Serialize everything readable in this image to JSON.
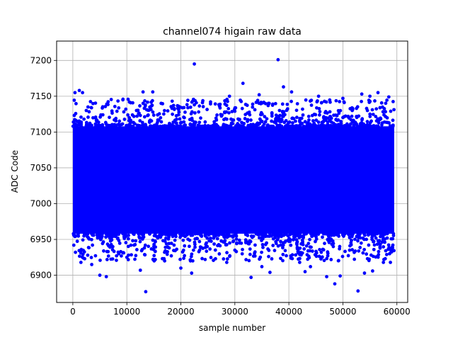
{
  "chart_data": {
    "type": "scatter",
    "title": "channel074 higain raw data",
    "xlabel": "sample number",
    "ylabel": "ADC Code",
    "xlim": [
      -3000,
      62000
    ],
    "ylim": [
      6862,
      7227
    ],
    "x_ticks": [
      0,
      10000,
      20000,
      30000,
      40000,
      50000,
      60000
    ],
    "y_ticks": [
      6900,
      6950,
      7000,
      7050,
      7100,
      7150,
      7200
    ],
    "grid": true,
    "marker_color": "#0000ff",
    "series": [
      {
        "x_range": [
          0,
          59500
        ],
        "dense_band": [
          6958,
          7108
        ],
        "outliers": [
          [
            22500,
            7195
          ],
          [
            38000,
            7201
          ],
          [
            31500,
            7168
          ],
          [
            39000,
            7163
          ],
          [
            40500,
            7156
          ],
          [
            13500,
            6877
          ],
          [
            52800,
            6878
          ],
          [
            48500,
            6888
          ],
          [
            33000,
            6897
          ],
          [
            5000,
            6900
          ],
          [
            6200,
            6898
          ],
          [
            36500,
            6904
          ],
          [
            22000,
            6903
          ],
          [
            47000,
            6898
          ],
          [
            49500,
            6899
          ],
          [
            54000,
            6903
          ],
          [
            400,
            7155
          ],
          [
            1200,
            7158
          ],
          [
            1800,
            7155
          ],
          [
            13000,
            7156
          ],
          [
            14800,
            7156
          ],
          [
            25500,
            7142
          ],
          [
            29000,
            7150
          ],
          [
            34500,
            7152
          ],
          [
            45500,
            7150
          ],
          [
            50000,
            7147
          ],
          [
            53500,
            7153
          ],
          [
            55000,
            7150
          ],
          [
            56500,
            7155
          ],
          [
            58500,
            7149
          ],
          [
            3500,
            6915
          ],
          [
            1500,
            6918
          ],
          [
            10000,
            6925
          ],
          [
            12500,
            6907
          ],
          [
            17000,
            6920
          ],
          [
            24500,
            6922
          ],
          [
            28500,
            6918
          ],
          [
            35000,
            6912
          ],
          [
            42000,
            6918
          ],
          [
            44000,
            6912
          ],
          [
            55500,
            6906
          ],
          [
            57500,
            6918
          ],
          [
            58800,
            6918
          ],
          [
            20000,
            6910
          ],
          [
            8500,
            6930
          ],
          [
            30000,
            6935
          ],
          [
            43000,
            6905
          ]
        ]
      }
    ]
  }
}
